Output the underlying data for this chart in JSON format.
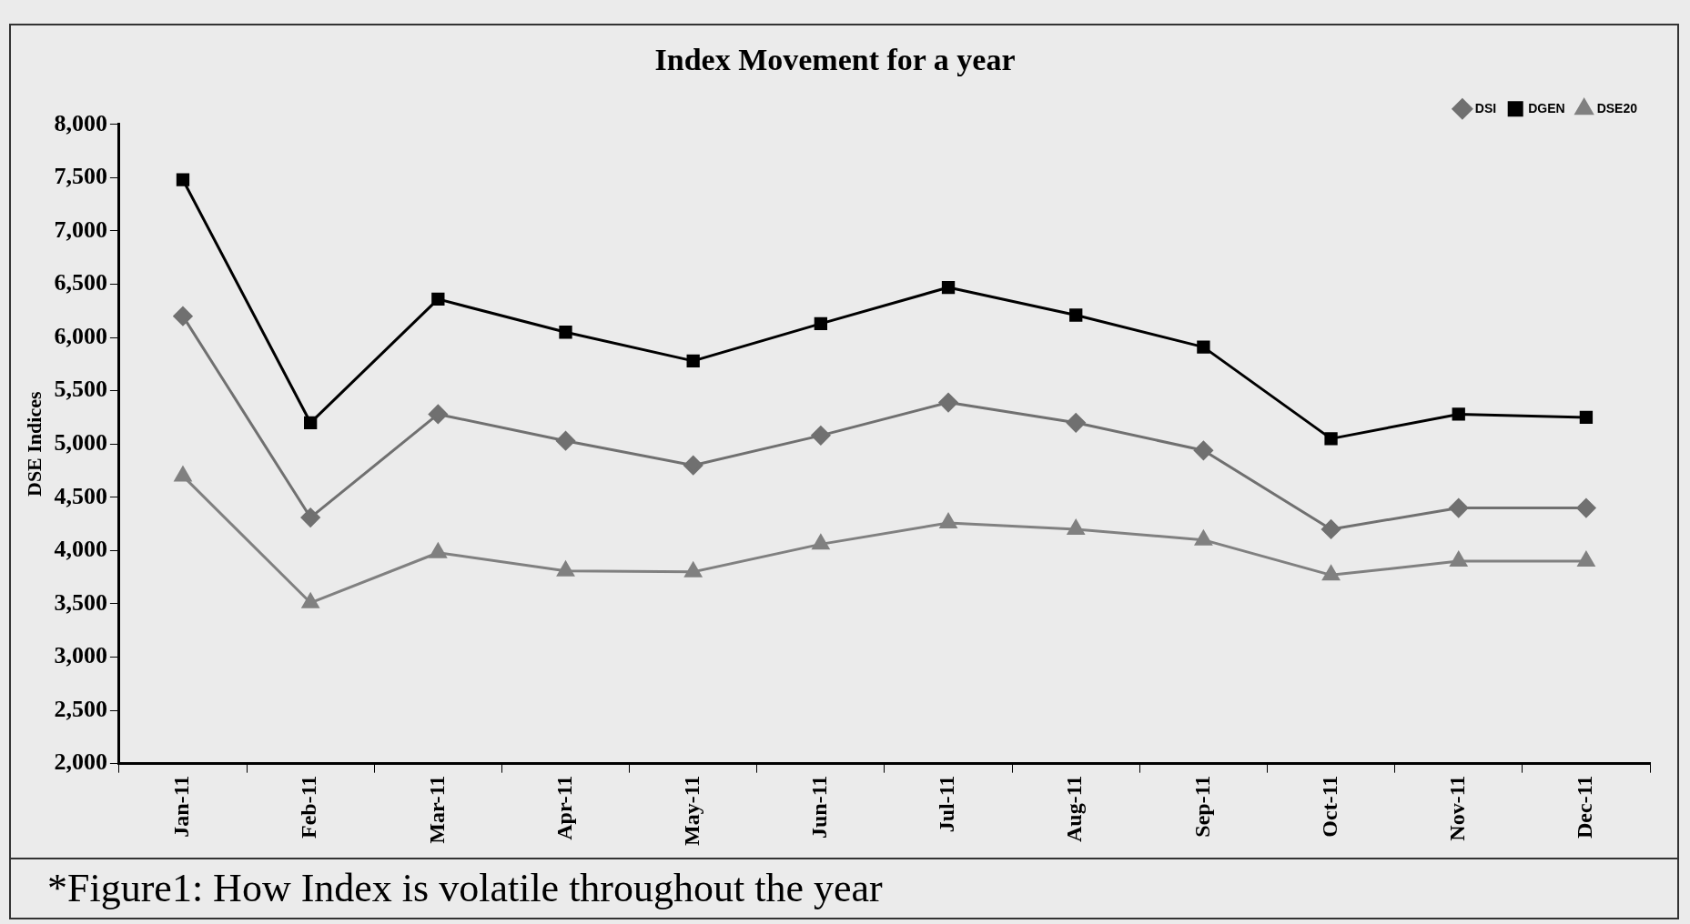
{
  "chart_data": {
    "type": "line",
    "title": "Index Movement for a year",
    "ylabel": "DSE Indices",
    "categories": [
      "Jan-11",
      "Feb-11",
      "Mar-11",
      "Apr-11",
      "May-11",
      "Jun-11",
      "Jul-11",
      "Aug-11",
      "Sep-11",
      "Oct-11",
      "Nov-11",
      "Dec-11"
    ],
    "series": [
      {
        "name": "DSI",
        "color": "#707070",
        "marker": "diamond",
        "values": [
          6200,
          4310,
          5280,
          5030,
          4800,
          5080,
          5390,
          5200,
          4940,
          4200,
          4400,
          4400
        ]
      },
      {
        "name": "DGEN",
        "color": "#000000",
        "marker": "square",
        "values": [
          7480,
          5200,
          6360,
          6050,
          5780,
          6130,
          6470,
          6210,
          5910,
          5050,
          5280,
          5250
        ]
      },
      {
        "name": "DSE20",
        "color": "#808080",
        "marker": "triangle",
        "values": [
          4700,
          3510,
          3980,
          3810,
          3800,
          4060,
          4260,
          4200,
          4100,
          3770,
          3900,
          3900
        ]
      }
    ],
    "ylim": [
      2000,
      8000
    ],
    "yticks": [
      {
        "value": 2000,
        "label": "2,000"
      },
      {
        "value": 2500,
        "label": "2,500"
      },
      {
        "value": 3000,
        "label": "3,000"
      },
      {
        "value": 3500,
        "label": "3,500"
      },
      {
        "value": 4000,
        "label": "4,000"
      },
      {
        "value": 4500,
        "label": "4,500"
      },
      {
        "value": 5000,
        "label": "5,000"
      },
      {
        "value": 5500,
        "label": "5,500"
      },
      {
        "value": 6000,
        "label": "6,000"
      },
      {
        "value": 6500,
        "label": "6,500"
      },
      {
        "value": 7000,
        "label": "7,000"
      },
      {
        "value": 7500,
        "label": "7,500"
      },
      {
        "value": 8000,
        "label": "8,000"
      }
    ],
    "grid": false,
    "legend": "top right",
    "line_style": "solid",
    "annotations": [
      "*Figure1: How Index is volatile throughout the year"
    ]
  }
}
